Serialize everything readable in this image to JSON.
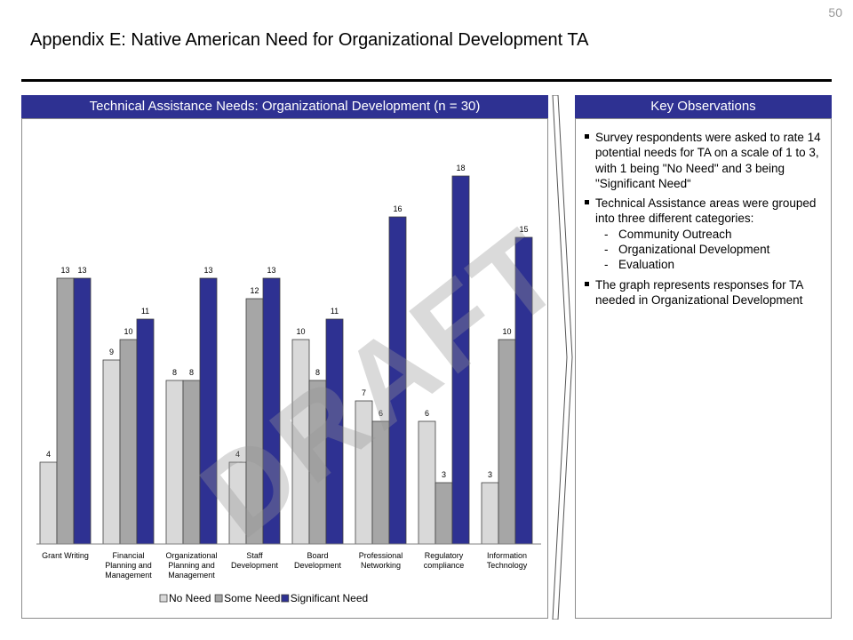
{
  "page_number": "50",
  "title": "Appendix E: Native American Need for Organizational Development TA",
  "chart_panel": {
    "header": "Technical Assistance Needs: Organizational Development (n = 30)"
  },
  "observations_panel": {
    "header": "Key Observations",
    "bullets": [
      "Survey respondents were asked to rate 14 potential needs for TA on a scale of 1 to 3, with 1 being \"No Need\" and 3 being \"Significant Need“",
      "Technical Assistance areas were grouped into three different categories:",
      "The graph represents responses for TA needed in Organizational Development"
    ],
    "subitems": [
      "Community Outreach",
      "Organizational Development",
      "Evaluation"
    ]
  },
  "watermark": "DRAFT",
  "colors": {
    "header_bg": "#2e3192",
    "no_need": "#d9d9d9",
    "some_need": "#a6a6a6",
    "significant_need": "#2e3192"
  },
  "chart_data": {
    "type": "bar",
    "categories": [
      [
        "Grant Writing"
      ],
      [
        "Financial",
        "Planning and",
        "Management"
      ],
      [
        "Organizational",
        "Planning and",
        "Management"
      ],
      [
        "Staff",
        "Development"
      ],
      [
        "Board",
        "Development"
      ],
      [
        "Professional",
        "Networking"
      ],
      [
        "Regulatory",
        "compliance"
      ],
      [
        "Information",
        "Technology"
      ]
    ],
    "series": [
      {
        "name": "No Need",
        "values": [
          4,
          9,
          8,
          4,
          10,
          7,
          6,
          3
        ]
      },
      {
        "name": "Some Need",
        "values": [
          13,
          10,
          8,
          12,
          8,
          6,
          3,
          10
        ]
      },
      {
        "name": "Significant Need",
        "values": [
          13,
          11,
          13,
          13,
          11,
          16,
          18,
          15
        ]
      }
    ],
    "ylim": [
      0,
      20
    ],
    "grid": false,
    "legend_position": "bottom",
    "data_labels": true
  }
}
